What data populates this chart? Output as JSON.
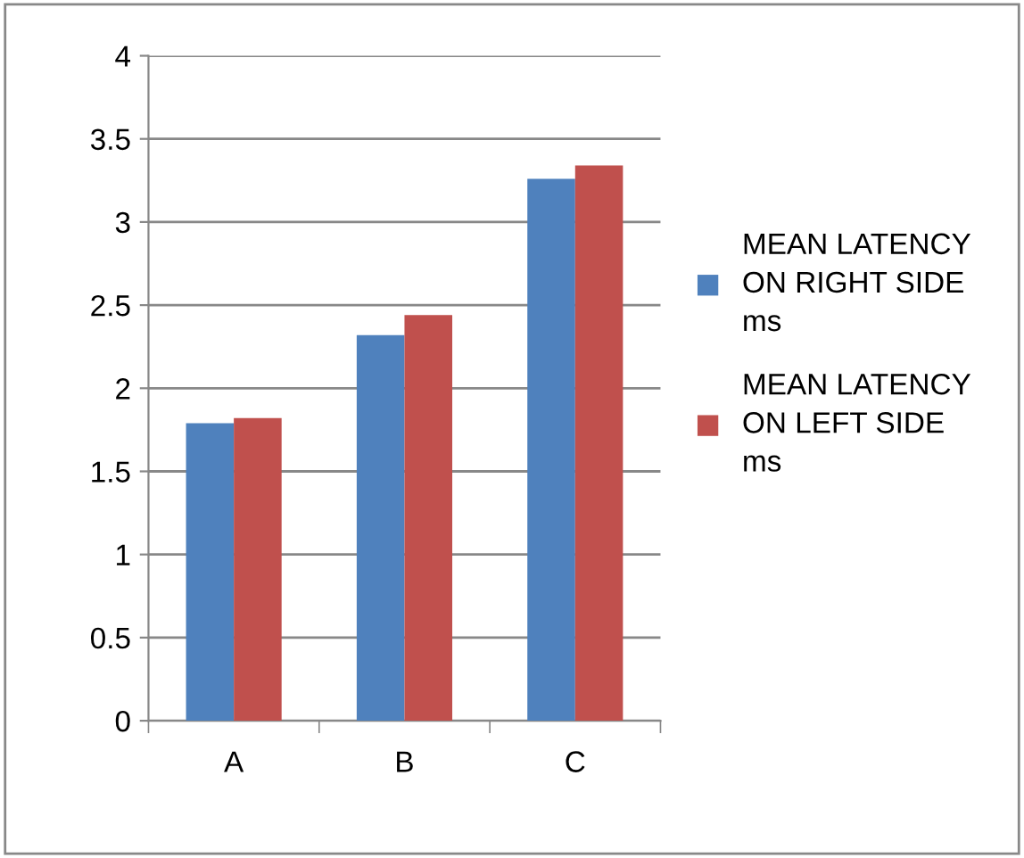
{
  "chart_data": {
    "type": "bar",
    "categories": [
      "A",
      "B",
      "C"
    ],
    "series": [
      {
        "name": "MEAN LATENCY ON RIGHT SIDE ms",
        "color": "#4f81bd",
        "values": [
          1.79,
          2.32,
          3.26
        ]
      },
      {
        "name": "MEAN LATENCY ON LEFT SIDE ms",
        "color": "#c0504d",
        "values": [
          1.82,
          2.44,
          3.34
        ]
      }
    ],
    "ylim": [
      0,
      4
    ],
    "yticks": [
      0,
      {
        "value": 0.5,
        "label": "0.5"
      },
      1,
      {
        "value": 1.5,
        "label": "1.5"
      },
      2,
      {
        "value": 2.5,
        "label": "2.5"
      },
      3,
      {
        "value": 3.5,
        "label": "3.5"
      },
      4
    ],
    "grid": "y",
    "legend": "right"
  }
}
